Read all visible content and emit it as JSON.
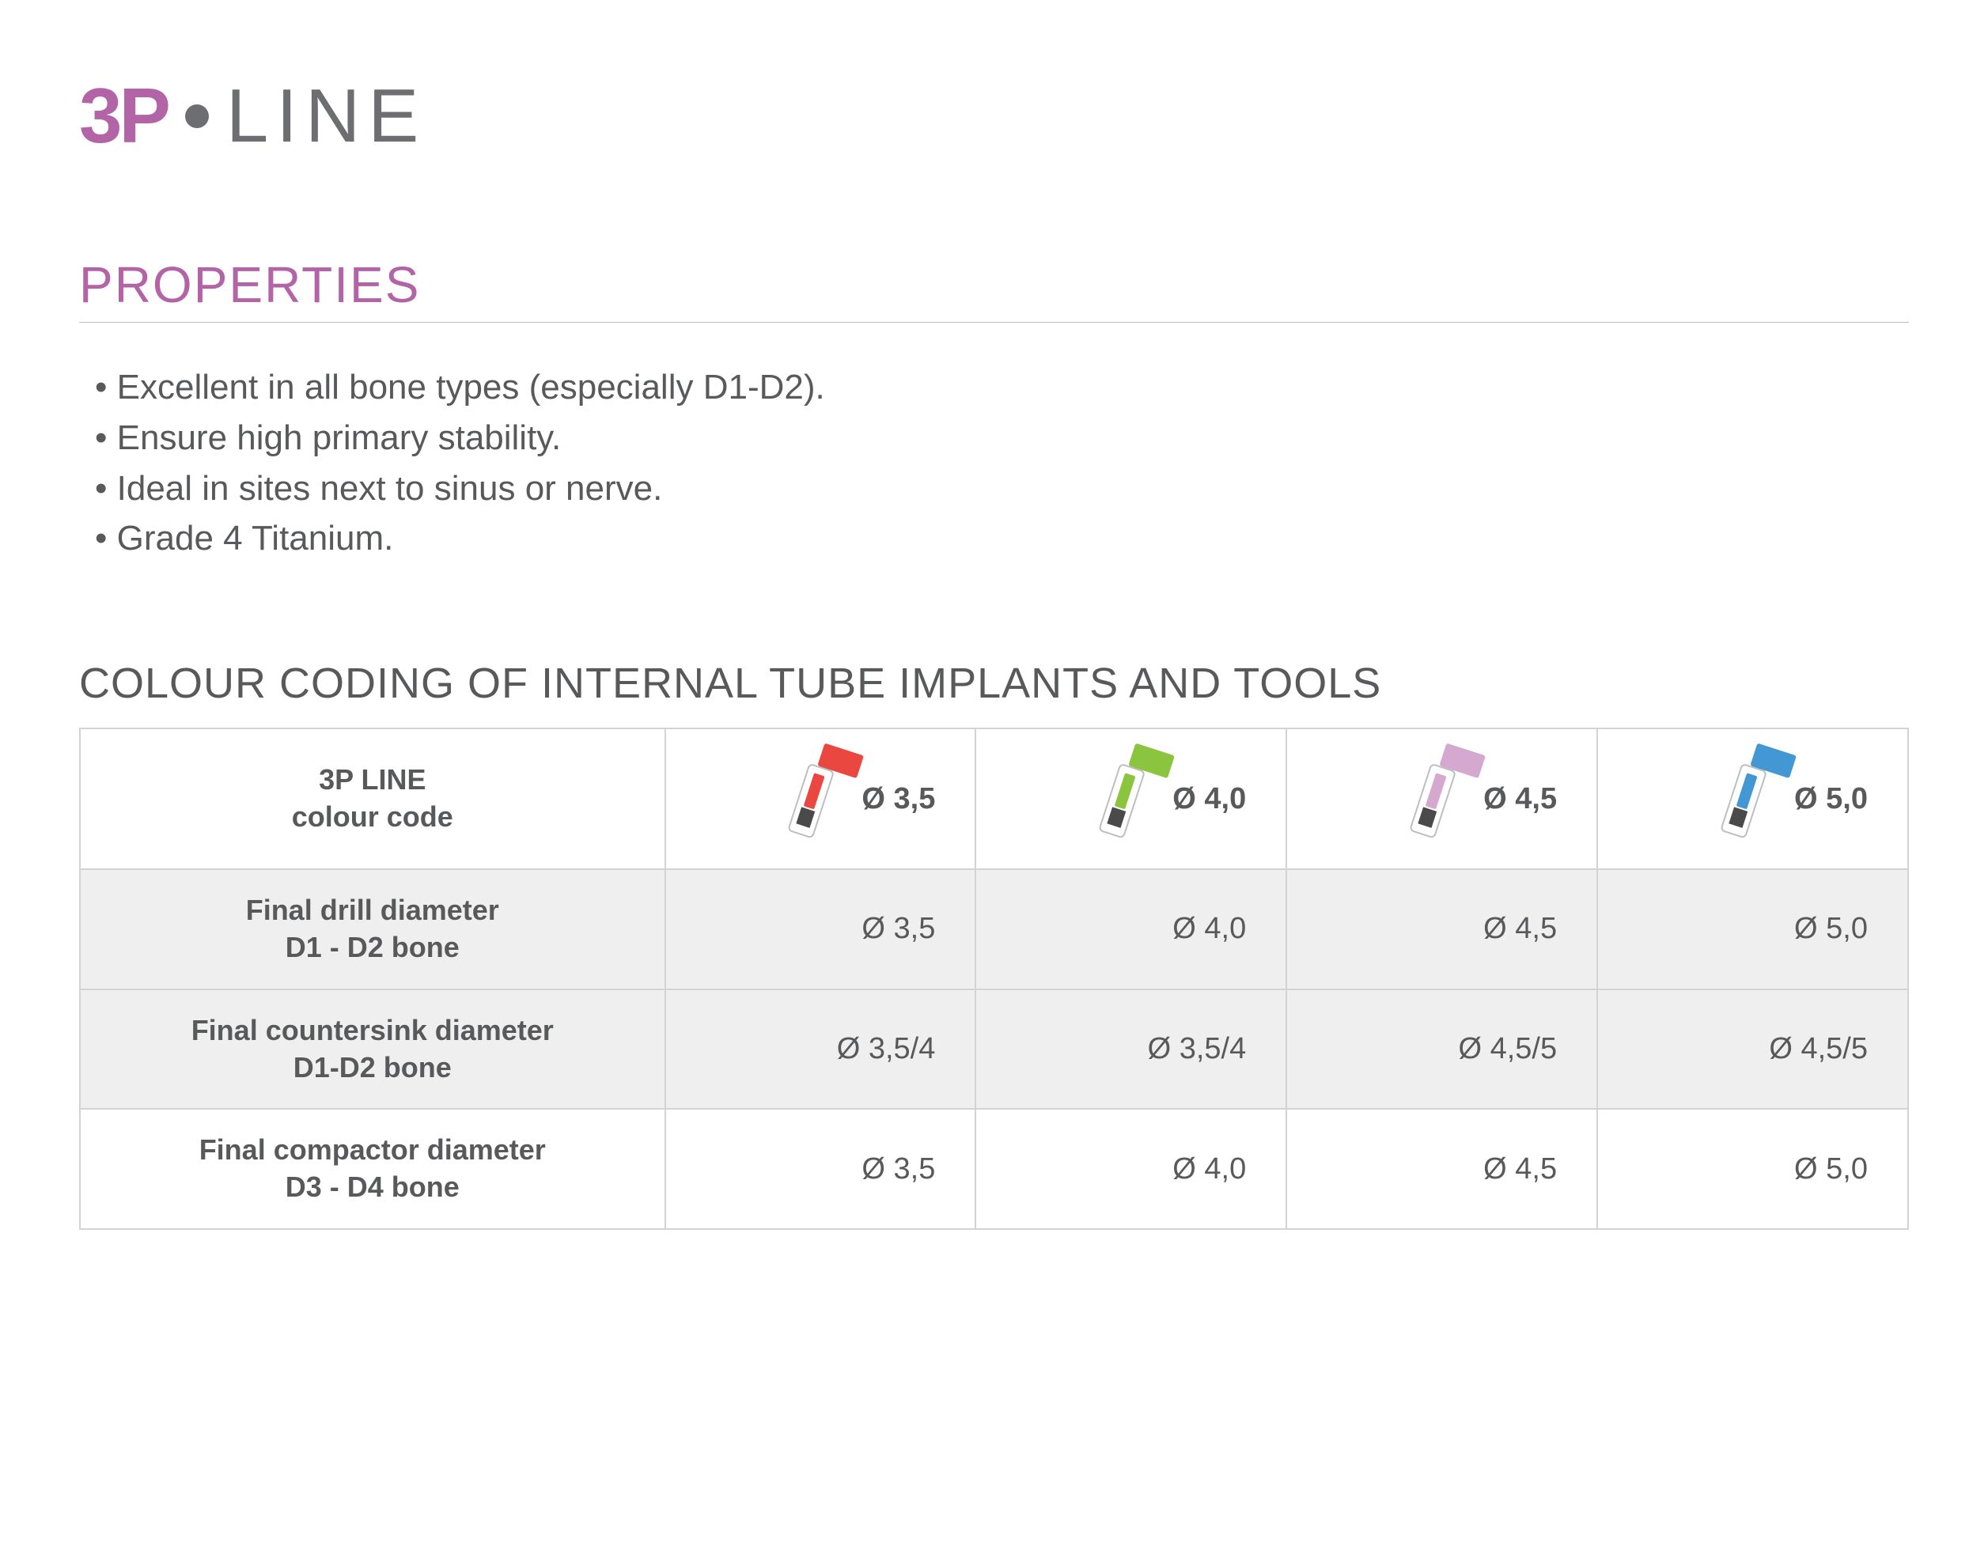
{
  "logo": {
    "brand": "3P",
    "suffix": "LINE",
    "brand_color": "#b264a6",
    "suffix_color": "#6d6e71",
    "dot_color": "#6d6e71"
  },
  "properties": {
    "heading": "PROPERTIES",
    "heading_color": "#b264a6",
    "bullets": [
      "Excellent in all bone types (especially D1-D2).",
      "Ensure high primary stability.",
      "Ideal in sites next to sinus or nerve.",
      "Grade 4 Titanium."
    ]
  },
  "table": {
    "heading": "COLOUR CODING OF INTERNAL TUBE IMPLANTS AND TOOLS",
    "header_label_line1": "3P LINE",
    "header_label_line2": "colour code",
    "columns": [
      {
        "label": "Ø 3,5",
        "tube_color": "#e9473f"
      },
      {
        "label": "Ø 4,0",
        "tube_color": "#8bc53f"
      },
      {
        "label": "Ø 4,5",
        "tube_color": "#d5a9cf"
      },
      {
        "label": "Ø 5,0",
        "tube_color": "#4398d4"
      }
    ],
    "rows": [
      {
        "label_line1": "Final drill diameter",
        "label_line2": "D1 - D2 bone",
        "values": [
          "Ø 3,5",
          "Ø 4,0",
          "Ø 4,5",
          "Ø 5,0"
        ],
        "alt": true
      },
      {
        "label_line1": "Final countersink diameter",
        "label_line2": "D1-D2 bone",
        "values": [
          "Ø 3,5/4",
          "Ø 3,5/4",
          "Ø 4,5/5",
          "Ø 4,5/5"
        ],
        "alt": true
      },
      {
        "label_line1": "Final compactor diameter",
        "label_line2": "D3 - D4 bone",
        "values": [
          "Ø 3,5",
          "Ø 4,0",
          "Ø 4,5",
          "Ø 5,0"
        ],
        "alt": false
      }
    ],
    "border_color": "#d1d3d4",
    "alt_bg": "#efefef",
    "text_color": "#58595b"
  }
}
